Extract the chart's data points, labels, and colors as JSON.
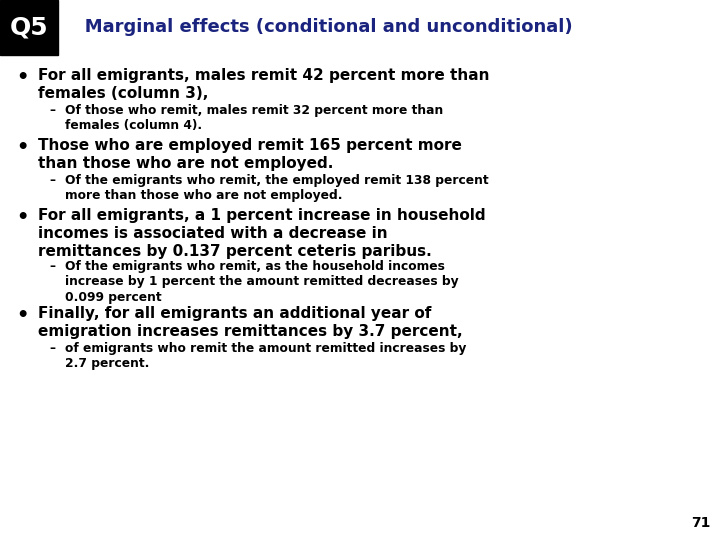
{
  "bg_color": "#ffffff",
  "header_box_color": "#000000",
  "header_q5_text": "Q5",
  "header_q5_color": "#ffffff",
  "header_title": "   Marginal effects (conditional and unconditional)",
  "header_title_color": "#1a237e",
  "bullet_color": "#000000",
  "bullet1_main": "For all emigrants, males remit 42 percent more than\nfemales (column 3),",
  "bullet1_sub": "Of those who remit, males remit 32 percent more than\nfemales (column 4).",
  "bullet2_main": "Those who are employed remit 165 percent more\nthan those who are not employed.",
  "bullet2_sub": "Of the emigrants who remit, the employed remit 138 percent\nmore than those who are not employed.",
  "bullet3_main": "For all emigrants, a 1 percent increase in household\nincomes is associated with a decrease in\nremittances by 0.137 percent ceteris paribus.",
  "bullet3_sub": "Of the emigrants who remit, as the household incomes\nincrease by 1 percent the amount remitted decreases by\n0.099 percent",
  "bullet4_main": "Finally, for all emigrants an additional year of\nemigration increases remittances by 3.7 percent,",
  "bullet4_sub": "of emigrants who remit the amount remitted increases by\n2.7 percent.",
  "page_number": "71",
  "main_fontsize": 11.0,
  "sub_fontsize": 8.8,
  "title_fontsize": 13.0,
  "q5_fontsize": 18.0
}
